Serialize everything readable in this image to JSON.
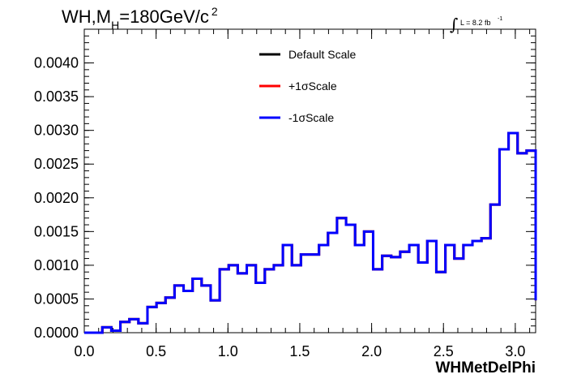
{
  "chart_data": {
    "type": "histogram-step",
    "title": {
      "prefix": "WH,M",
      "sub": "H",
      "value": "=180GeV/c",
      "sup": "2"
    },
    "luminosity": {
      "integral_sign": "∫",
      "text": "L = 8.2 fb",
      "sup": "-1"
    },
    "xlabel": "WHMetDelPhi",
    "ylabel": "",
    "xlim": [
      0.0,
      3.1416
    ],
    "ylim": [
      0.0,
      0.0045
    ],
    "x_ticks": [
      "0.0",
      "0.5",
      "1.0",
      "1.5",
      "2.0",
      "2.5",
      "3.0"
    ],
    "x_tick_values": [
      0.0,
      0.5,
      1.0,
      1.5,
      2.0,
      2.5,
      3.0
    ],
    "y_ticks": [
      "0.0000",
      "0.0005",
      "0.0010",
      "0.0015",
      "0.0020",
      "0.0025",
      "0.0030",
      "0.0035",
      "0.0040"
    ],
    "y_tick_values": [
      0.0,
      0.0005,
      0.001,
      0.0015,
      0.002,
      0.0025,
      0.003,
      0.0035,
      0.004
    ],
    "bins": 50,
    "legend_position": "top-center",
    "series": [
      {
        "name": "Default Scale",
        "color": "#000000",
        "values": [
          0.0,
          0.0,
          8e-05,
          3e-05,
          0.00016,
          0.0002,
          0.00014,
          0.00038,
          0.00044,
          0.00052,
          0.0007,
          0.00062,
          0.0008,
          0.0007,
          0.00048,
          0.00094,
          0.001,
          0.00088,
          0.001,
          0.00074,
          0.00094,
          0.001,
          0.0013,
          0.001,
          0.00116,
          0.00116,
          0.0013,
          0.00148,
          0.0017,
          0.0016,
          0.0013,
          0.0015,
          0.00094,
          0.00114,
          0.00112,
          0.0012,
          0.0013,
          0.00104,
          0.00136,
          0.0009,
          0.0013,
          0.0011,
          0.0013,
          0.00136,
          0.0014,
          0.0019,
          0.00272,
          0.00296,
          0.00266,
          0.0027
        ]
      },
      {
        "name": "+1σScale",
        "color": "#ff0000",
        "values": [
          0.0,
          0.0,
          8e-05,
          3e-05,
          0.00016,
          0.0002,
          0.00014,
          0.00038,
          0.00044,
          0.00052,
          0.0007,
          0.00062,
          0.0008,
          0.0007,
          0.00048,
          0.00094,
          0.001,
          0.00088,
          0.001,
          0.00074,
          0.00094,
          0.001,
          0.0013,
          0.001,
          0.00116,
          0.00116,
          0.0013,
          0.00148,
          0.0017,
          0.0016,
          0.0013,
          0.0015,
          0.00094,
          0.00114,
          0.00112,
          0.0012,
          0.0013,
          0.00104,
          0.00136,
          0.0009,
          0.0013,
          0.0011,
          0.0013,
          0.00136,
          0.0014,
          0.0019,
          0.00272,
          0.00296,
          0.00266,
          0.0027
        ]
      },
      {
        "name": "-1σScale",
        "color": "#0000ff",
        "values": [
          0.0,
          0.0,
          8e-05,
          3e-05,
          0.00016,
          0.0002,
          0.00014,
          0.00038,
          0.00044,
          0.00052,
          0.0007,
          0.00062,
          0.0008,
          0.0007,
          0.00048,
          0.00094,
          0.001,
          0.00088,
          0.001,
          0.00074,
          0.00094,
          0.001,
          0.0013,
          0.001,
          0.00116,
          0.00116,
          0.0013,
          0.00148,
          0.0017,
          0.0016,
          0.0013,
          0.0015,
          0.00094,
          0.00114,
          0.00112,
          0.0012,
          0.0013,
          0.00104,
          0.00136,
          0.0009,
          0.0013,
          0.0011,
          0.0013,
          0.00136,
          0.0014,
          0.0019,
          0.00272,
          0.00296,
          0.00266,
          0.0027
        ]
      }
    ],
    "last_bin_partial_value": 0.00048
  }
}
